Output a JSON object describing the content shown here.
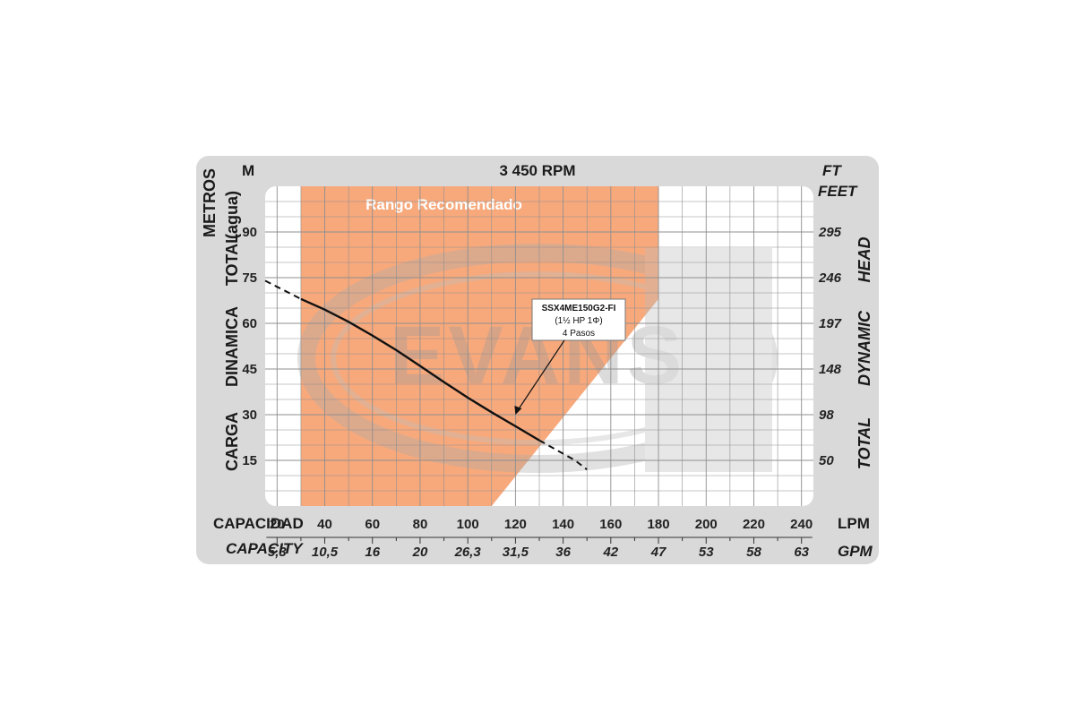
{
  "chart_data": {
    "type": "line",
    "title": "3 450 RPM",
    "y_unit_left": "M",
    "y_unit_right_top": "FT",
    "y_unit_right": "FEET",
    "ylabel_left_outer": "METROS",
    "ylabel_left_inner": "(agua)",
    "ylabel_left_words": [
      "CARGA",
      "DINAMICA",
      "TOTAL"
    ],
    "ylabel_right_words": [
      "TOTAL",
      "DYNAMIC",
      "HEAD"
    ],
    "y_ticks_left": [
      "15",
      "30",
      "45",
      "60",
      "75",
      "90"
    ],
    "y_ticks_right": [
      "50",
      "98",
      "148",
      "197",
      "246",
      "295"
    ],
    "ylim": [
      0,
      105
    ],
    "xlabel_primary": "CAPACIDAD",
    "xunit_primary": "LPM",
    "xlabel_secondary": "CAPACITY",
    "xunit_secondary": "GPM",
    "x_ticks_primary": [
      "20",
      "40",
      "60",
      "80",
      "100",
      "120",
      "140",
      "160",
      "180",
      "200",
      "220",
      "240"
    ],
    "x_ticks_secondary": [
      "5,3",
      "10,5",
      "16",
      "20",
      "26,3",
      "31,5",
      "36",
      "42",
      "47",
      "53",
      "58",
      "63"
    ],
    "xlim": [
      15,
      245
    ],
    "recommended_range": {
      "label": "Rango Recomendado",
      "x_start": 30,
      "x_end": 180,
      "color": "#f7a475"
    },
    "watermark": "EVANS",
    "series": [
      {
        "name": "SSX4ME150G2-FI",
        "points": [
          [
            30,
            68
          ],
          [
            40,
            64.5
          ],
          [
            50,
            60.5
          ],
          [
            60,
            56
          ],
          [
            70,
            51.2
          ],
          [
            80,
            46
          ],
          [
            90,
            40.7
          ],
          [
            100,
            35.6
          ],
          [
            110,
            30.8
          ],
          [
            120,
            26.2
          ],
          [
            130,
            21.6
          ]
        ],
        "dashed_before": [
          [
            15,
            74
          ],
          [
            30,
            68
          ]
        ],
        "dashed_after": [
          [
            130,
            21.6
          ],
          [
            145,
            15
          ],
          [
            150,
            12
          ]
        ],
        "color": "#111111"
      }
    ],
    "annotation": {
      "lines": [
        "SSX4ME150G2-FI",
        "(1½ HP  1Φ)",
        "4 Pasos"
      ],
      "points_to": [
        120,
        30
      ]
    },
    "grid": true
  }
}
